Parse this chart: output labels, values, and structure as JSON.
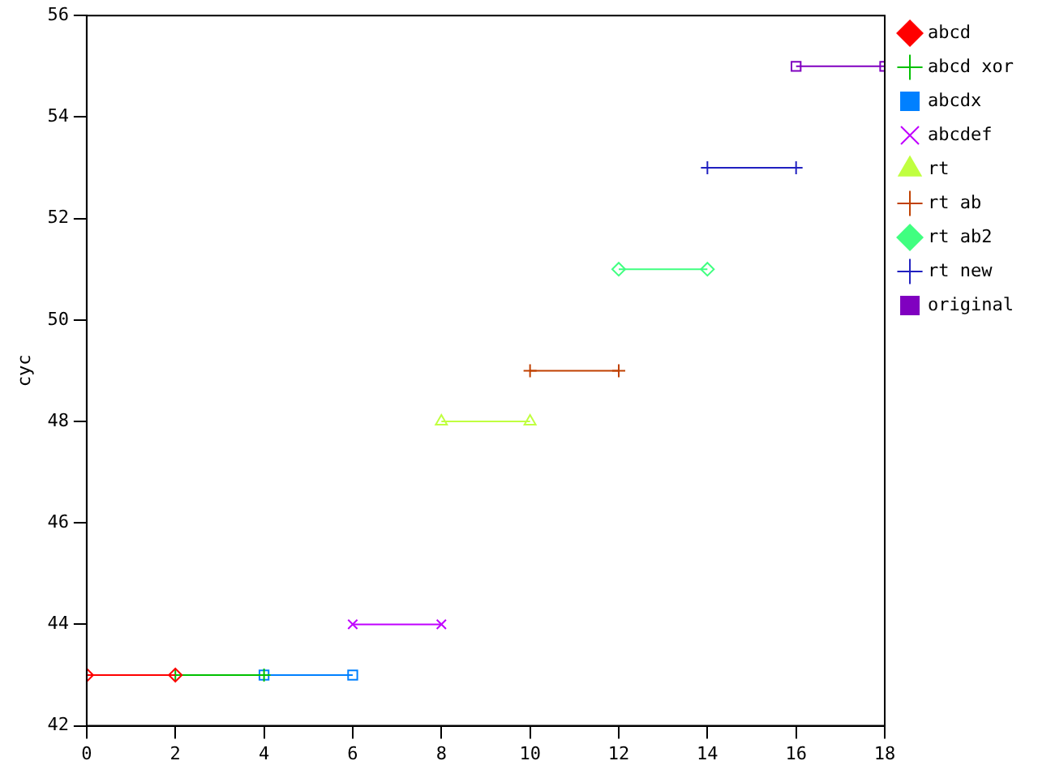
{
  "chart_data": {
    "type": "line",
    "ylabel": "cyc",
    "xlim": [
      0,
      18
    ],
    "xticks": [
      0,
      2,
      4,
      6,
      8,
      10,
      12,
      14,
      16,
      18
    ],
    "ylim": [
      42,
      56
    ],
    "yticks": [
      42,
      44,
      46,
      48,
      50,
      52,
      54,
      56
    ],
    "grid": false,
    "legend": "top right",
    "series": [
      {
        "name": "abcd",
        "color": "#ff0000",
        "marker": "diamond",
        "x": [
          0,
          2
        ],
        "values": [
          43,
          43
        ]
      },
      {
        "name": "abcd xor",
        "color": "#00c000",
        "marker": "cross",
        "x": [
          2,
          4
        ],
        "values": [
          43,
          43
        ]
      },
      {
        "name": "abcdx",
        "color": "#0080ff",
        "marker": "square",
        "x": [
          4,
          6
        ],
        "values": [
          43,
          43
        ]
      },
      {
        "name": "abcdef",
        "color": "#c000ff",
        "marker": "x",
        "x": [
          6,
          8
        ],
        "values": [
          44,
          44
        ]
      },
      {
        "name": "rt",
        "color": "#c0ff40",
        "marker": "triangle",
        "x": [
          8,
          10
        ],
        "values": [
          48,
          48
        ]
      },
      {
        "name": "rt ab",
        "color": "#c04000",
        "marker": "cross",
        "x": [
          10,
          12
        ],
        "values": [
          49,
          49
        ]
      },
      {
        "name": "rt ab2",
        "color": "#40ff80",
        "marker": "diamond",
        "x": [
          12,
          14
        ],
        "values": [
          51,
          51
        ]
      },
      {
        "name": "rt new",
        "color": "#2020c0",
        "marker": "cross",
        "x": [
          14,
          16
        ],
        "values": [
          53,
          53
        ]
      },
      {
        "name": "original",
        "color": "#8000c0",
        "marker": "square",
        "x": [
          16,
          18
        ],
        "values": [
          55,
          55
        ]
      }
    ]
  }
}
